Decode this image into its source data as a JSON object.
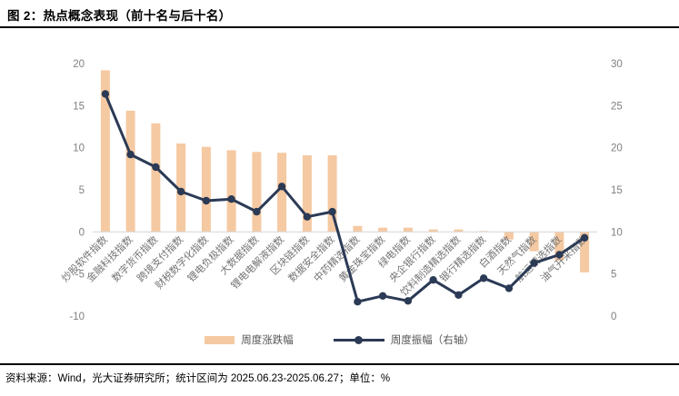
{
  "title": "图 2：热点概念表现（前十名与后十名）",
  "footer": "资料来源：Wind，光大证券研究所；统计区间为 2025.06.23-2025.06.27；单位：%",
  "legend": {
    "bar_label": "周度涨跌幅",
    "line_label": "周度振幅（右轴）"
  },
  "colors": {
    "bar": "#F5C9A2",
    "line": "#2B3A55",
    "axis_text": "#7F7F7F",
    "category_text": "#737373",
    "zero_line": "#D9D9D9",
    "legend_text": "#555555"
  },
  "chart_data": {
    "type": "bar+line combo",
    "title": "热点概念表现（前十名与后十名）",
    "unit": "%",
    "legend_position": "bottom-center",
    "grid": "off",
    "categories": [
      "炒股软件指数",
      "金融科技指数",
      "数字货币指数",
      "跨境支付指数",
      "财税数字化指数",
      "锂电负极指数",
      "大数据指数",
      "锂电电解液指数",
      "区块链指数",
      "数据安全指数",
      "中药精选指数",
      "黄金珠宝指数",
      "绿电指数",
      "央企银行指数",
      "饮料制造精选指数",
      "银行精选指数",
      "白酒指数",
      "天然气指数",
      "航运精选指数",
      "油气开采指数"
    ],
    "series": [
      {
        "name": "周度涨跌幅",
        "type": "bar",
        "axis": "left",
        "values": [
          19.2,
          14.4,
          12.9,
          10.5,
          10.1,
          9.7,
          9.5,
          9.4,
          9.1,
          9.1,
          0.7,
          0.5,
          0.5,
          0.3,
          0.3,
          0.1,
          -0.9,
          -2.3,
          -3.4,
          -4.8
        ]
      },
      {
        "name": "周度振幅（右轴）",
        "type": "line",
        "axis": "right",
        "values": [
          26.4,
          19.2,
          17.7,
          14.8,
          13.7,
          13.9,
          12.4,
          15.4,
          11.8,
          12.4,
          1.7,
          2.4,
          1.8,
          4.3,
          2.5,
          4.5,
          3.3,
          6.3,
          7.3,
          9.3
        ]
      }
    ],
    "left_axis": {
      "min": -10,
      "max": 20,
      "ticks": [
        20,
        15,
        10,
        5,
        0,
        -5,
        -10
      ]
    },
    "right_axis": {
      "min": 0,
      "max": 30,
      "ticks": [
        30,
        25,
        20,
        15,
        10,
        5,
        0
      ]
    }
  }
}
